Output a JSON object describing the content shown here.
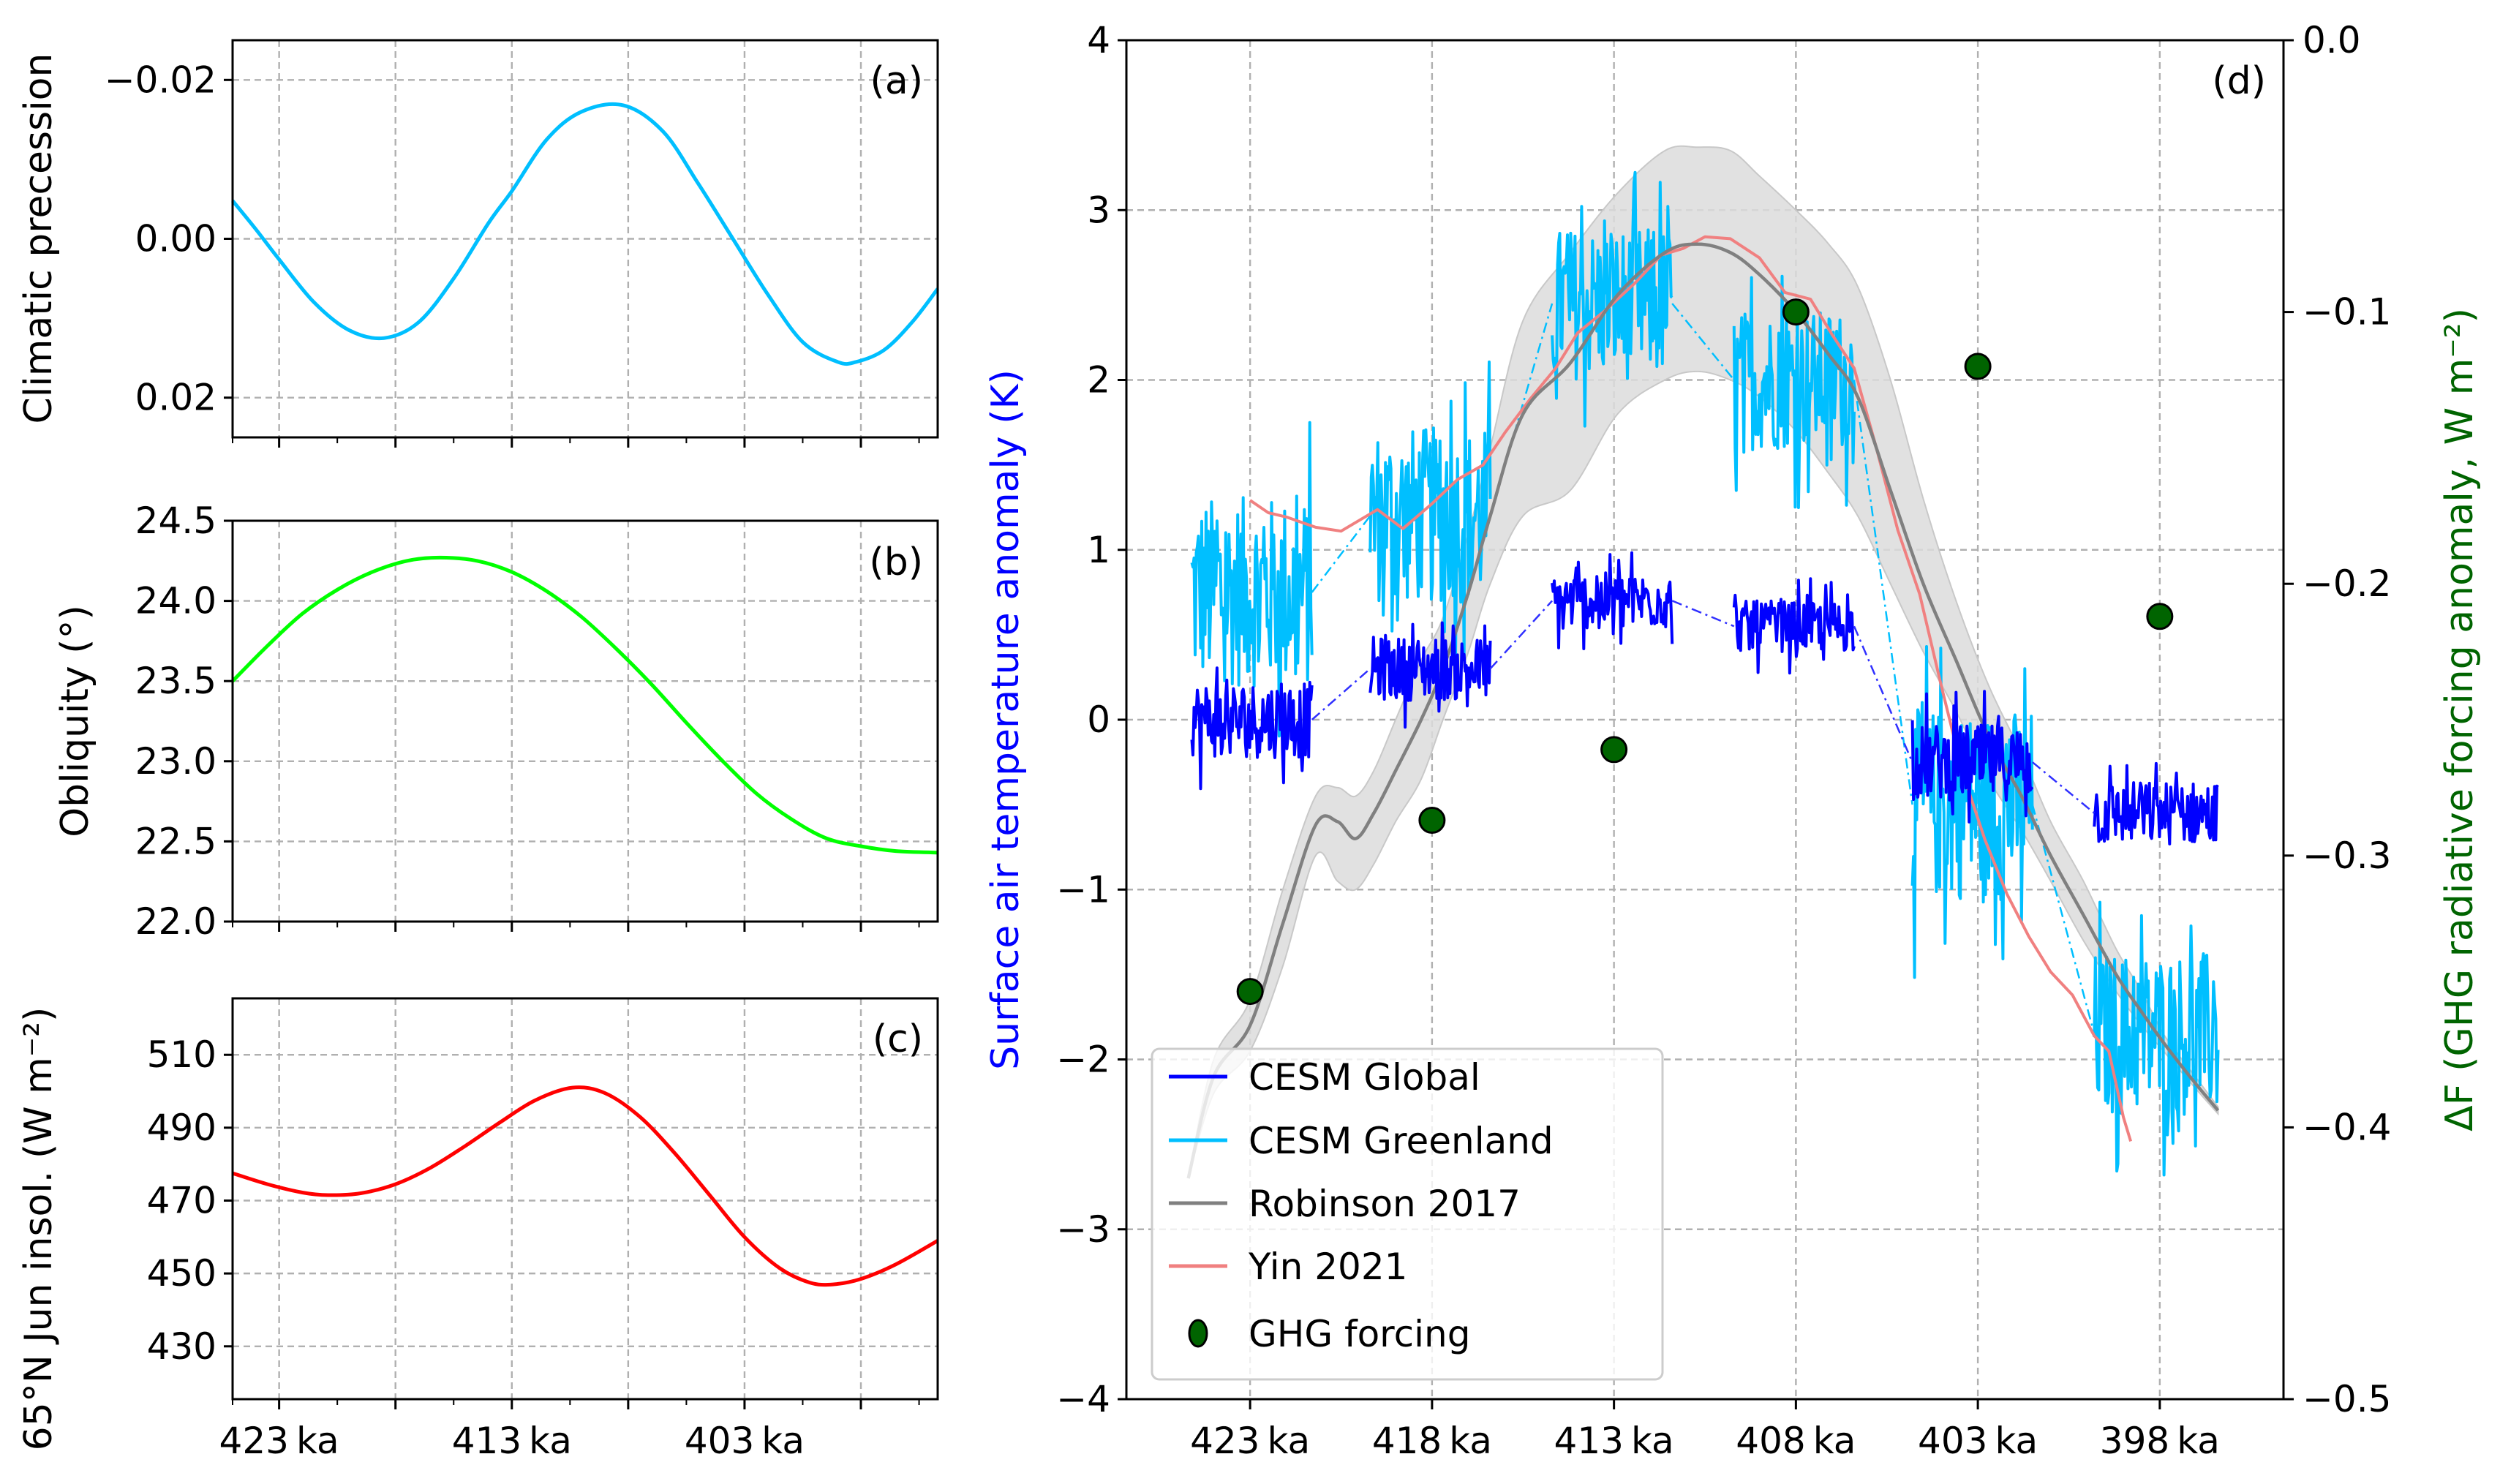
{
  "chart_data": [
    {
      "id": "a",
      "type": "line",
      "panel_label": "(a)",
      "ylabel": "Climatic precession",
      "xlabel": "",
      "x_unit": "ka",
      "xlim": [
        425.0,
        394.7
      ],
      "ylim": [
        0.025,
        -0.025
      ],
      "y_inverted": true,
      "yticks": [
        -0.02,
        0.0,
        0.02
      ],
      "ytick_labels": [
        "−0.02",
        "0.00",
        "0.02"
      ],
      "xticks": [
        423,
        413,
        403
      ],
      "xtick_labels": [
        "",
        "",
        ""
      ],
      "xgrid": [
        423,
        418,
        413,
        408,
        403,
        398
      ],
      "xminor": [
        425,
        420.5,
        415.5,
        410.5,
        405.5,
        400.5,
        395.5
      ],
      "grid": true,
      "series": [
        {
          "name": "Climatic precession",
          "color": "#00bfff",
          "x": [
            425.0,
            424.0,
            423.0,
            421.5,
            420.0,
            418.5,
            417.0,
            415.5,
            414.0,
            413.0,
            411.5,
            410.0,
            408.2,
            406.5,
            405.0,
            403.5,
            402.0,
            400.5,
            399.0,
            398.2,
            397.0,
            395.8,
            394.7
          ],
          "y": [
            -0.0048,
            -0.0012,
            0.0026,
            0.008,
            0.0115,
            0.0125,
            0.0105,
            0.005,
            -0.002,
            -0.006,
            -0.0125,
            -0.016,
            -0.0168,
            -0.0135,
            -0.007,
            0.0,
            0.007,
            0.013,
            0.0155,
            0.0155,
            0.014,
            0.0105,
            0.0063
          ]
        }
      ]
    },
    {
      "id": "b",
      "type": "line",
      "panel_label": "(b)",
      "ylabel": "Obliquity (°)",
      "xlabel": "",
      "x_unit": "ka",
      "xlim": [
        425.0,
        394.7
      ],
      "ylim": [
        22.0,
        24.5
      ],
      "yticks": [
        22.0,
        22.5,
        23.0,
        23.5,
        24.0,
        24.5
      ],
      "ytick_labels": [
        "22.0",
        "22.5",
        "23.0",
        "23.5",
        "24.0",
        "24.5"
      ],
      "xticks": [
        423,
        413,
        403
      ],
      "xtick_labels": [
        "",
        "",
        ""
      ],
      "xgrid": [
        423,
        418,
        413,
        408,
        403,
        398
      ],
      "xminor": [
        425,
        420.5,
        415.5,
        410.5,
        405.5,
        400.5,
        395.5
      ],
      "grid": true,
      "series": [
        {
          "name": "Obliquity",
          "color": "#00ff00",
          "x": [
            425.0,
            423.5,
            422.0,
            420.5,
            419.0,
            417.5,
            416.1,
            414.5,
            413.0,
            411.5,
            410.0,
            408.5,
            407.0,
            405.5,
            404.0,
            402.5,
            401.0,
            399.5,
            398.0,
            396.5,
            394.7
          ],
          "y": [
            23.5,
            23.72,
            23.92,
            24.07,
            24.18,
            24.25,
            24.27,
            24.25,
            24.18,
            24.06,
            23.9,
            23.7,
            23.48,
            23.24,
            23.01,
            22.8,
            22.64,
            22.52,
            22.47,
            22.44,
            22.43
          ]
        }
      ]
    },
    {
      "id": "c",
      "type": "line",
      "panel_label": "(c)",
      "ylabel": "65°N Jun insol. (W m⁻²)",
      "xlabel": "",
      "x_unit": "ka",
      "xlim": [
        425.0,
        394.7
      ],
      "ylim": [
        415.5,
        525.5
      ],
      "yticks": [
        430,
        450,
        470,
        490,
        510
      ],
      "ytick_labels": [
        "430",
        "450",
        "470",
        "490",
        "510"
      ],
      "xticks": [
        423,
        413,
        403
      ],
      "xtick_labels": [
        "423 ka",
        "413 ka",
        "403 ka"
      ],
      "xgrid": [
        423,
        418,
        413,
        408,
        403,
        398
      ],
      "xminor": [
        425,
        420.5,
        415.5,
        410.5,
        405.5,
        400.5,
        395.5
      ],
      "grid": true,
      "series": [
        {
          "name": "65N June insolation",
          "color": "#ff0000",
          "x": [
            425.0,
            423.5,
            422.0,
            420.9,
            419.5,
            418.0,
            416.5,
            415.0,
            413.5,
            412.0,
            410.4,
            409.0,
            407.5,
            406.0,
            404.5,
            403.0,
            401.5,
            400.2,
            399.2,
            398.0,
            396.5,
            394.7
          ],
          "y": [
            477.5,
            474.5,
            472.2,
            471.5,
            472.0,
            474.5,
            479.0,
            485.0,
            491.5,
            497.5,
            501.0,
            499.5,
            493.0,
            483.0,
            471.5,
            460.0,
            451.5,
            447.5,
            447.0,
            448.5,
            452.5,
            459.0
          ]
        }
      ]
    },
    {
      "id": "d",
      "type": "line",
      "panel_label": "(d)",
      "ylabel": "Surface air temperature anomaly (K)",
      "ylabel_color": "#0000ff",
      "ylabel_right": "ΔF (GHG radiative forcing anomaly, W m⁻²)",
      "ylabel_right_color": "#006400",
      "xlabel": "",
      "x_unit": "ka",
      "xlim": [
        426.4,
        394.6
      ],
      "ylim": [
        -4,
        4
      ],
      "ylim_right": [
        -0.5,
        0.0
      ],
      "yticks": [
        -4,
        -3,
        -2,
        -1,
        0,
        1,
        2,
        3,
        4
      ],
      "ytick_labels": [
        "−4",
        "−3",
        "−2",
        "−1",
        "0",
        "1",
        "2",
        "3",
        "4"
      ],
      "yticks_right": [
        -0.5,
        -0.4,
        -0.3,
        -0.2,
        -0.1,
        0.0
      ],
      "ytick_labels_right": [
        "−0.5",
        "−0.4",
        "−0.3",
        "−0.2",
        "−0.1",
        "0.0"
      ],
      "xticks": [
        423,
        418,
        413,
        408,
        403,
        398
      ],
      "xtick_labels": [
        "423 ka",
        "418 ka",
        "413 ka",
        "408 ka",
        "403 ka",
        "398 ka"
      ],
      "grid": true,
      "legend": {
        "position": "lower-left",
        "entries": [
          {
            "label": "CESM Global",
            "color": "#0000ff",
            "marker": "line"
          },
          {
            "label": "CESM Greenland",
            "color": "#00bfff",
            "marker": "line"
          },
          {
            "label": "Robinson 2017",
            "color": "#808080",
            "marker": "line"
          },
          {
            "label": "Yin 2021",
            "color": "#f08080",
            "marker": "line"
          },
          {
            "label": "GHG forcing",
            "color": "#006400",
            "marker": "circle"
          }
        ]
      },
      "robinson_2017": {
        "name": "Robinson 2017",
        "color": "#808080",
        "band_color": "#dcdcdc",
        "x": [
          424.7,
          424.0,
          423.0,
          422.1,
          421.2,
          420.6,
          420.1,
          419.6,
          419.0,
          418.3,
          417.7,
          417.0,
          416.4,
          415.5,
          414.2,
          412.9,
          411.6,
          410.7,
          409.8,
          409.0,
          408.0,
          407.1,
          406.3,
          405.4,
          404.5,
          403.6,
          402.7,
          401.8,
          401.0,
          400.1,
          399.2,
          398.5,
          397.9,
          397.1,
          396.4
        ],
        "y": [
          -2.7,
          -2.1,
          -1.8,
          -1.2,
          -0.62,
          -0.6,
          -0.7,
          -0.55,
          -0.3,
          0.0,
          0.3,
          0.75,
          1.2,
          1.8,
          2.1,
          2.5,
          2.75,
          2.8,
          2.75,
          2.62,
          2.4,
          2.15,
          1.9,
          1.35,
          0.8,
          0.35,
          -0.1,
          -0.45,
          -0.8,
          -1.15,
          -1.5,
          -1.72,
          -1.9,
          -2.12,
          -2.3
        ],
        "lower": [
          -2.7,
          -2.2,
          -1.95,
          -1.45,
          -0.8,
          -0.95,
          -1.0,
          -0.85,
          -0.6,
          -0.35,
          0.0,
          0.4,
          0.8,
          1.2,
          1.35,
          1.8,
          2.0,
          2.05,
          2.0,
          1.9,
          1.7,
          1.45,
          1.2,
          0.8,
          0.4,
          0.05,
          -0.35,
          -0.65,
          -0.95,
          -1.3,
          -1.6,
          -1.8,
          -1.95,
          -2.15,
          -2.32
        ],
        "upper": [
          -2.7,
          -2.0,
          -1.65,
          -1.0,
          -0.45,
          -0.4,
          -0.45,
          -0.3,
          0.0,
          0.35,
          0.6,
          1.1,
          1.6,
          2.35,
          2.75,
          3.1,
          3.35,
          3.37,
          3.35,
          3.2,
          3.0,
          2.8,
          2.55,
          2.0,
          1.3,
          0.7,
          0.2,
          -0.2,
          -0.6,
          -0.95,
          -1.35,
          -1.6,
          -1.85,
          -2.08,
          -2.28
        ]
      },
      "yin_2021": {
        "name": "Yin 2021",
        "color": "#f08080",
        "x": [
          423.0,
          422.5,
          422.0,
          421.2,
          420.5,
          419.5,
          418.8,
          418.0,
          417.3,
          416.6,
          416.0,
          415.3,
          414.6,
          414.0,
          413.2,
          412.4,
          411.7,
          411.1,
          410.5,
          409.8,
          409.0,
          408.3,
          407.6,
          407.0,
          406.4,
          405.8,
          405.2,
          404.6,
          404.0,
          403.4,
          402.8,
          402.2,
          401.6,
          401.0,
          400.4,
          399.8,
          399.4,
          399.0,
          398.8
        ],
        "y": [
          1.3,
          1.25,
          1.2,
          1.15,
          1.1,
          1.2,
          1.15,
          1.3,
          1.4,
          1.5,
          1.65,
          1.9,
          2.1,
          2.25,
          2.45,
          2.6,
          2.7,
          2.8,
          2.85,
          2.8,
          2.7,
          2.55,
          2.45,
          2.3,
          2.1,
          1.6,
          1.1,
          0.75,
          0.2,
          -0.3,
          -0.75,
          -1.0,
          -1.3,
          -1.5,
          -1.65,
          -1.85,
          -1.95,
          -2.3,
          -2.5
        ]
      },
      "cesm_global": {
        "name": "CESM Global",
        "color": "#0000ff",
        "segments": [
          {
            "x_start": 424.6,
            "x_end": 421.3,
            "mean": 0.0,
            "spread": 0.3
          },
          {
            "x_start": 419.7,
            "x_end": 416.4,
            "mean": 0.3,
            "spread": 0.25
          },
          {
            "x_start": 414.7,
            "x_end": 411.4,
            "mean": 0.7,
            "spread": 0.22
          },
          {
            "x_start": 409.7,
            "x_end": 406.4,
            "mean": 0.55,
            "spread": 0.2
          },
          {
            "x_start": 404.8,
            "x_end": 401.5,
            "mean": -0.25,
            "spread": 0.3
          },
          {
            "x_start": 399.8,
            "x_end": 396.4,
            "mean": -0.55,
            "spread": 0.25
          }
        ]
      },
      "cesm_greenland": {
        "name": "CESM Greenland",
        "color": "#00bfff",
        "segments": [
          {
            "x_start": 424.6,
            "x_end": 421.3,
            "mean": 0.75,
            "spread": 0.75
          },
          {
            "x_start": 419.7,
            "x_end": 416.4,
            "mean": 1.2,
            "spread": 0.7
          },
          {
            "x_start": 414.7,
            "x_end": 411.4,
            "mean": 2.45,
            "spread": 0.6
          },
          {
            "x_start": 409.7,
            "x_end": 406.4,
            "mean": 2.0,
            "spread": 0.55
          },
          {
            "x_start": 404.8,
            "x_end": 401.5,
            "mean": -0.5,
            "spread": 0.75
          },
          {
            "x_start": 399.8,
            "x_end": 396.4,
            "mean": -1.85,
            "spread": 0.65
          }
        ]
      },
      "ghg_forcing": {
        "name": "GHG forcing",
        "axis": "right",
        "color": "#006400",
        "x": [
          423,
          418,
          413,
          408,
          403,
          398
        ],
        "y": [
          -0.35,
          -0.287,
          -0.261,
          -0.1,
          -0.12,
          -0.212
        ]
      }
    }
  ]
}
